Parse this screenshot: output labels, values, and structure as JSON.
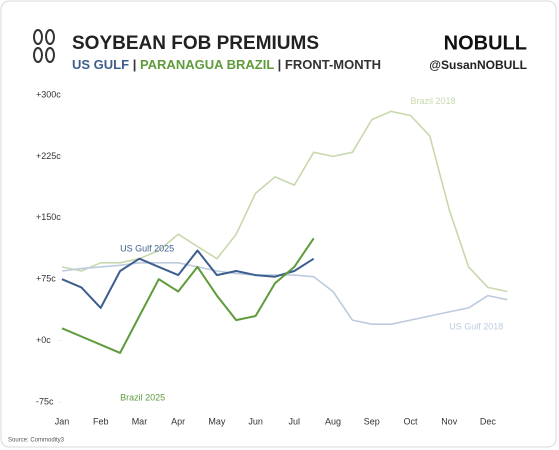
{
  "chart_data": {
    "type": "line",
    "title": "SOYBEAN FOB PREMIUMS",
    "subtitle": [
      "US GULF",
      "|",
      "PARANAGUA BRAZIL",
      "| FRONT-MONTH"
    ],
    "brand": "NOBULL",
    "handle": "@SusanNOBULL",
    "source": "Source: Commodity3",
    "categories": [
      "Jan",
      null,
      "Feb",
      null,
      "Mar",
      null,
      "Apr",
      null,
      "May",
      null,
      "Jun",
      null,
      "Jul",
      null,
      "Aug",
      null,
      "Sep",
      null,
      "Oct",
      null,
      "Nov",
      null,
      "Dec",
      null
    ],
    "series": [
      {
        "name": "Brazil 2018",
        "color": "#c7d8ad",
        "values": [
          90,
          85,
          95,
          95,
          100,
          110,
          130,
          115,
          100,
          130,
          180,
          200,
          190,
          230,
          225,
          230,
          270,
          280,
          275,
          250,
          160,
          90,
          65,
          60
        ]
      },
      {
        "name": "US Gulf 2018",
        "color": "#bccbde",
        "values": [
          85,
          88,
          90,
          92,
          95,
          95,
          95,
          90,
          85,
          82,
          80,
          80,
          80,
          78,
          60,
          25,
          20,
          20,
          25,
          30,
          35,
          40,
          55,
          50
        ]
      },
      {
        "name": "US Gulf 2025",
        "color": "#3d5f8f",
        "values": [
          75,
          65,
          40,
          85,
          100,
          90,
          80,
          110,
          80,
          85,
          80,
          78,
          85,
          100,
          null,
          null,
          null,
          null,
          null,
          null,
          null,
          null,
          null,
          null
        ]
      },
      {
        "name": "Brazil 2025",
        "color": "#5f9b3b",
        "values": [
          15,
          5,
          -5,
          -15,
          30,
          75,
          60,
          90,
          55,
          25,
          30,
          70,
          90,
          125,
          null,
          null,
          null,
          null,
          null,
          null,
          null,
          null,
          null,
          null
        ]
      }
    ],
    "ylim": [
      -75,
      300
    ],
    "yticks": [
      {
        "value": -75,
        "label": "-75c"
      },
      {
        "value": 0,
        "label": "+0c"
      },
      {
        "value": 75,
        "label": "+75c"
      },
      {
        "value": 150,
        "label": "+150c"
      },
      {
        "value": 225,
        "label": "+225c"
      },
      {
        "value": 300,
        "label": "+300c"
      }
    ],
    "grid": false
  }
}
